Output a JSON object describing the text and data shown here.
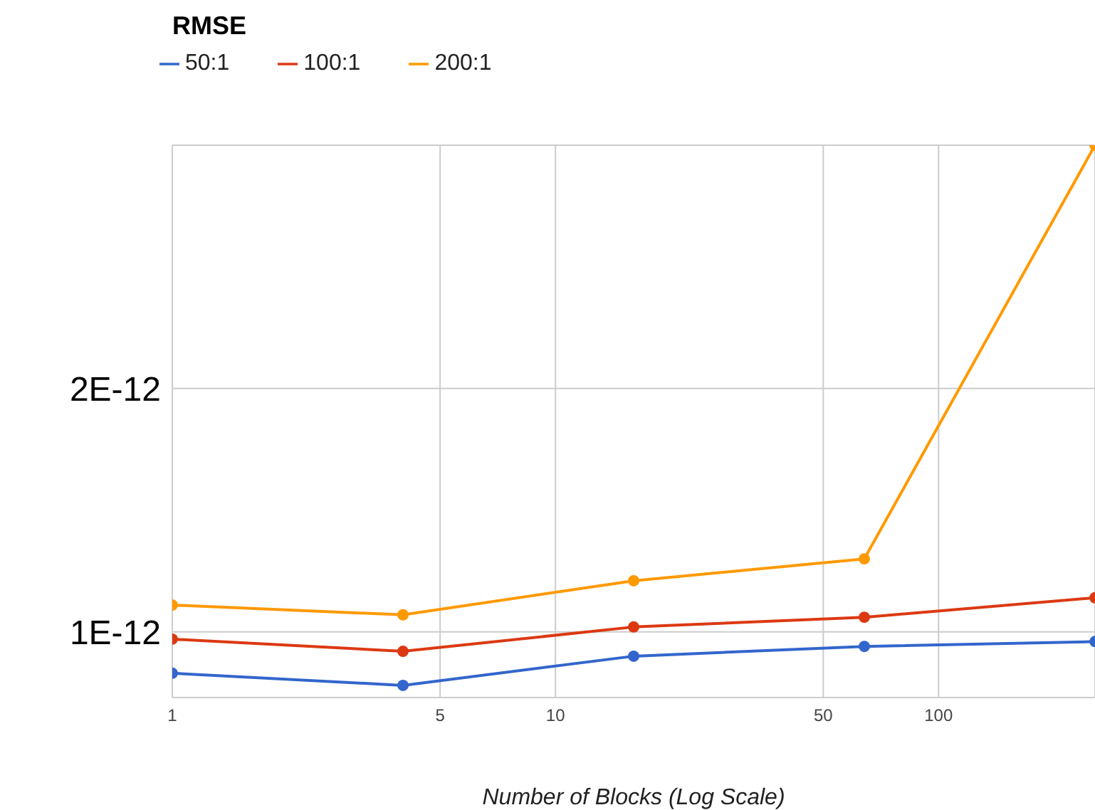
{
  "chart_data": {
    "type": "line",
    "title": "RMSE",
    "xlabel": "Number of Blocks (Log Scale)",
    "x": [
      1,
      4,
      16,
      64,
      256
    ],
    "series": [
      {
        "name": "50:1",
        "color": "#3366cc",
        "values": [
          8.3e-13,
          7.8e-13,
          9e-13,
          9.4e-13,
          9.6e-13
        ]
      },
      {
        "name": "100:1",
        "color": "#dc3912",
        "values": [
          9.7e-13,
          9.2e-13,
          1.02e-12,
          1.06e-12,
          1.14e-12
        ]
      },
      {
        "name": "200:1",
        "color": "#ff9900",
        "values": [
          1.11e-12,
          1.07e-12,
          1.21e-12,
          1.3e-12,
          3e-12
        ]
      }
    ],
    "log": "x",
    "xlim": [
      1,
      256
    ],
    "xticks": [
      1,
      5,
      10,
      50,
      100
    ],
    "ylim": [
      7.3e-13,
      3e-12
    ],
    "yticks": [
      {
        "value": 1e-12,
        "label": "1E-12"
      },
      {
        "value": 2e-12,
        "label": "2E-12"
      }
    ],
    "grid": true,
    "legend": "top left",
    "marker": "circle",
    "line_style": "solid"
  }
}
